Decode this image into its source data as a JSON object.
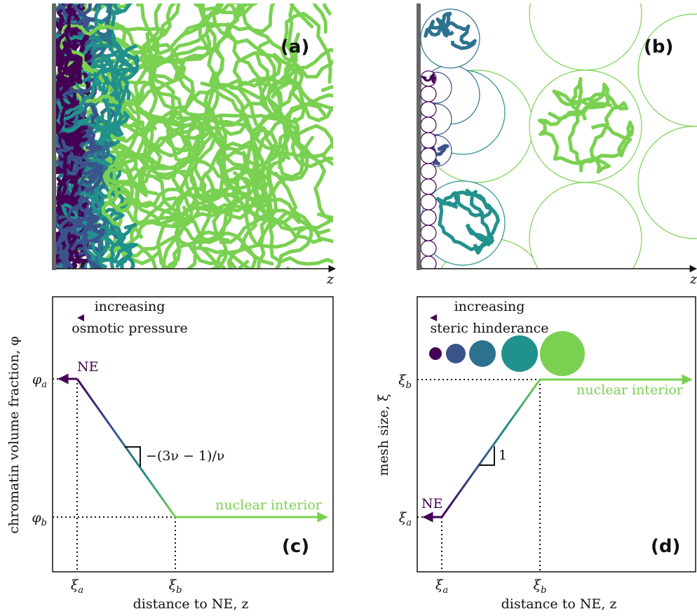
{
  "panels": {
    "a": {
      "label": "(a)",
      "axis_label": "z"
    },
    "b": {
      "label": "(b)",
      "axis_label": "z"
    },
    "c": {
      "label": "(c)",
      "legend": {
        "text": "increasing",
        "caption": "osmotic pressure"
      },
      "y_label": "chromatin volume fraction, φ",
      "x_label": "distance to NE, z",
      "y_ticks": [
        {
          "symbol": "φ",
          "sub": "a"
        },
        {
          "symbol": "φ",
          "sub": "b"
        }
      ],
      "x_ticks": [
        {
          "symbol": "ξ",
          "sub": "a"
        },
        {
          "symbol": "ξ",
          "sub": "b"
        }
      ],
      "ne_label": "NE",
      "interior_label": "nuclear interior",
      "slope_label": "−(3ν − 1)/ν"
    },
    "d": {
      "label": "(d)",
      "legend": {
        "text": "increasing",
        "caption": "steric hinderance"
      },
      "y_label": "mesh size, ξ",
      "x_label": "distance to NE, z",
      "y_ticks": [
        {
          "symbol": "ξ",
          "sub": "b"
        },
        {
          "symbol": "ξ",
          "sub": "a"
        }
      ],
      "x_ticks": [
        {
          "symbol": "ξ",
          "sub": "a"
        },
        {
          "symbol": "ξ",
          "sub": "b"
        }
      ],
      "ne_label": "NE",
      "interior_label": "nuclear interior",
      "slope_label": "1"
    }
  }
}
